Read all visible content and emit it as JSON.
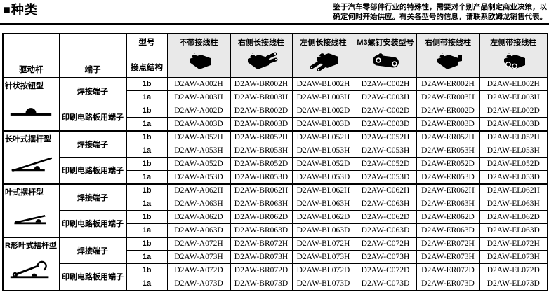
{
  "page": {
    "title": "■种类",
    "notice_line1": "鉴于汽车零部件行业的特殊性，需要对个别产品制定商业决策，以",
    "notice_line2": "确定何时开始供应。有关各型号的信息，请联系欧姆龙销售代表。"
  },
  "colors": {
    "header_bg": "#e9e9e9",
    "border": "#000000"
  },
  "table": {
    "header": {
      "lever": "驱动杆",
      "terminal": "端子",
      "model": "型号",
      "contact": "接点结构",
      "products": [
        {
          "label": "不带接线柱",
          "icon": "switch-plain-icon"
        },
        {
          "label": "右侧长接线柱",
          "icon": "switch-right-long-terminal-icon"
        },
        {
          "label": "左侧长接线柱",
          "icon": "switch-left-long-terminal-icon"
        },
        {
          "label": "M3螺钉安装型号",
          "icon": "switch-m3-screw-mount-icon"
        },
        {
          "label": "右侧带接线柱",
          "icon": "switch-right-terminal-icon"
        },
        {
          "label": "左侧带接线柱",
          "icon": "switch-left-terminal-icon"
        }
      ]
    },
    "groups": [
      {
        "lever": "针状按钮型",
        "icon": "pin-plunger-icon",
        "terminals": [
          {
            "label": "焊接端子",
            "rows": [
              {
                "contact": "1b",
                "models": [
                  "D2AW-A002H",
                  "D2AW-BR002H",
                  "D2AW-BL002H",
                  "D2AW-C002H",
                  "D2AW-ER002H",
                  "D2AW-EL002H"
                ]
              },
              {
                "contact": "1a",
                "models": [
                  "D2AW-A003H",
                  "D2AW-BR003H",
                  "D2AW-BL003H",
                  "D2AW-C003H",
                  "D2AW-ER003H",
                  "D2AW-EL003H"
                ]
              }
            ]
          },
          {
            "label": "印刷电路板用端子",
            "rows": [
              {
                "contact": "1b",
                "models": [
                  "D2AW-A002D",
                  "D2AW-BR002D",
                  "D2AW-BL002D",
                  "D2AW-C002D",
                  "D2AW-ER002D",
                  "D2AW-EL002D"
                ]
              },
              {
                "contact": "1a",
                "models": [
                  "D2AW-A003D",
                  "D2AW-BR003D",
                  "D2AW-BL003D",
                  "D2AW-C003D",
                  "D2AW-ER003D",
                  "D2AW-EL003D"
                ]
              }
            ]
          }
        ]
      },
      {
        "lever": "长叶式摆杆型",
        "icon": "long-hinge-lever-icon",
        "terminals": [
          {
            "label": "焊接端子",
            "rows": [
              {
                "contact": "1b",
                "models": [
                  "D2AW-A052H",
                  "D2AW-BR052H",
                  "D2AW-BL052H",
                  "D2AW-C052H",
                  "D2AW-ER052H",
                  "D2AW-EL052H"
                ]
              },
              {
                "contact": "1a",
                "models": [
                  "D2AW-A053H",
                  "D2AW-BR053H",
                  "D2AW-BL053H",
                  "D2AW-C053H",
                  "D2AW-ER053H",
                  "D2AW-EL053H"
                ]
              }
            ]
          },
          {
            "label": "印刷电路板用端子",
            "rows": [
              {
                "contact": "1b",
                "models": [
                  "D2AW-A052D",
                  "D2AW-BR052D",
                  "D2AW-BL052D",
                  "D2AW-C052D",
                  "D2AW-ER052D",
                  "D2AW-EL052D"
                ]
              },
              {
                "contact": "1a",
                "models": [
                  "D2AW-A053D",
                  "D2AW-BR053D",
                  "D2AW-BL053D",
                  "D2AW-C053D",
                  "D2AW-ER053D",
                  "D2AW-EL053D"
                ]
              }
            ]
          }
        ]
      },
      {
        "lever": "叶式摆杆型",
        "icon": "hinge-lever-icon",
        "terminals": [
          {
            "label": "焊接端子",
            "rows": [
              {
                "contact": "1b",
                "models": [
                  "D2AW-A062H",
                  "D2AW-BR062H",
                  "D2AW-BL062H",
                  "D2AW-C062H",
                  "D2AW-ER062H",
                  "D2AW-EL062H"
                ]
              },
              {
                "contact": "1a",
                "models": [
                  "D2AW-A063H",
                  "D2AW-BR063H",
                  "D2AW-BL063H",
                  "D2AW-C063H",
                  "D2AW-ER063H",
                  "D2AW-EL063H"
                ]
              }
            ]
          },
          {
            "label": "印刷电路板用端子",
            "rows": [
              {
                "contact": "1b",
                "models": [
                  "D2AW-A062D",
                  "D2AW-BR062D",
                  "D2AW-BL062D",
                  "D2AW-C062D",
                  "D2AW-ER062D",
                  "D2AW-EL062D"
                ]
              },
              {
                "contact": "1a",
                "models": [
                  "D2AW-A063D",
                  "D2AW-BR063D",
                  "D2AW-BL063D",
                  "D2AW-C063D",
                  "D2AW-ER063D",
                  "D2AW-EL063D"
                ]
              }
            ]
          }
        ]
      },
      {
        "lever": "R形叶式摆杆型",
        "icon": "r-hinge-lever-icon",
        "terminals": [
          {
            "label": "焊接端子",
            "rows": [
              {
                "contact": "1b",
                "models": [
                  "D2AW-A072H",
                  "D2AW-BR072H",
                  "D2AW-BL072H",
                  "D2AW-C072H",
                  "D2AW-ER072H",
                  "D2AW-EL072H"
                ]
              },
              {
                "contact": "1a",
                "models": [
                  "D2AW-A073H",
                  "D2AW-BR073H",
                  "D2AW-BL073H",
                  "D2AW-C073H",
                  "D2AW-ER073H",
                  "D2AW-EL073H"
                ]
              }
            ]
          },
          {
            "label": "印刷电路板用端子",
            "rows": [
              {
                "contact": "1b",
                "models": [
                  "D2AW-A072D",
                  "D2AW-BR072D",
                  "D2AW-BL072D",
                  "D2AW-C072D",
                  "D2AW-ER072D",
                  "D2AW-EL072D"
                ]
              },
              {
                "contact": "1a",
                "models": [
                  "D2AW-A073D",
                  "D2AW-BR073D",
                  "D2AW-BL073D",
                  "D2AW-C073D",
                  "D2AW-ER073D",
                  "D2AW-EL073D"
                ]
              }
            ]
          }
        ]
      }
    ]
  }
}
